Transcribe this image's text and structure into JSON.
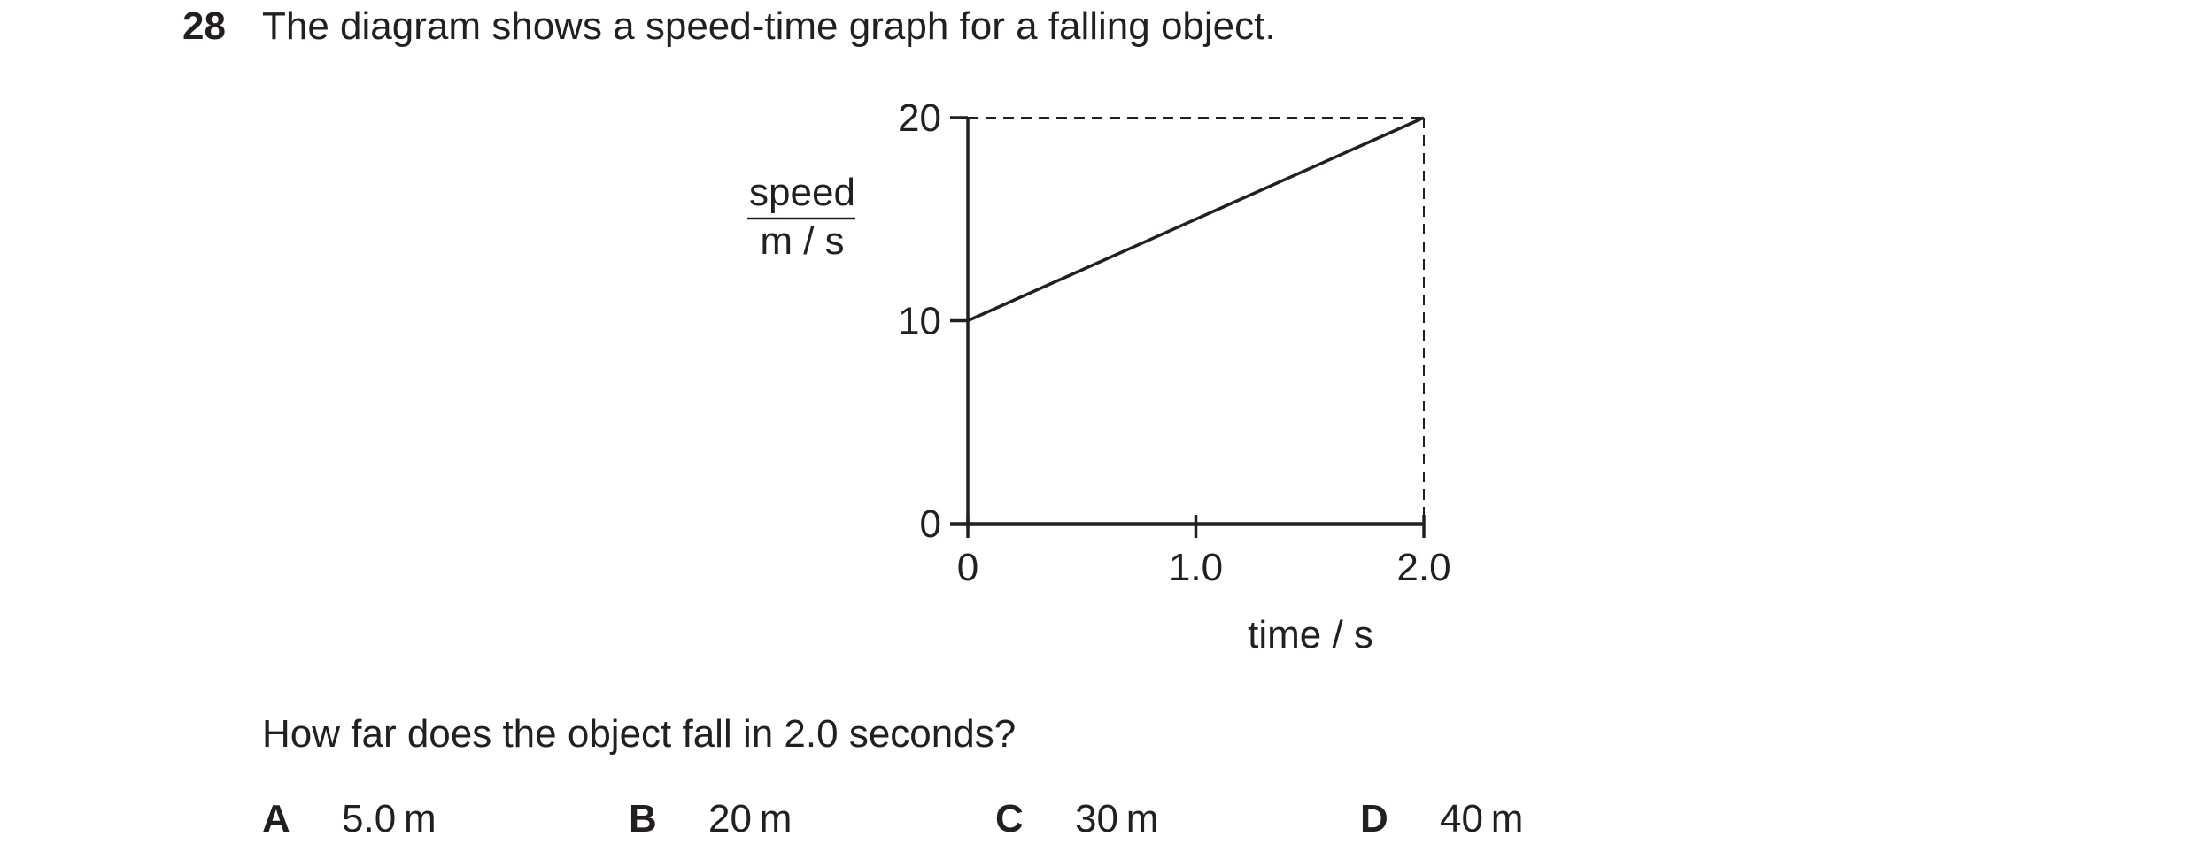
{
  "question": {
    "number": "28",
    "text": "The diagram shows a speed-time graph for a falling object.",
    "subquestion": "How far does the object fall in 2.0 seconds?"
  },
  "options": [
    {
      "letter": "A",
      "text": "5.0 m"
    },
    {
      "letter": "B",
      "text": "20 m"
    },
    {
      "letter": "C",
      "text": "30 m"
    },
    {
      "letter": "D",
      "text": "40 m"
    }
  ],
  "chart_data": {
    "type": "line",
    "title": "",
    "xlabel": "time / s",
    "ylabel_top": "speed",
    "ylabel_bottom": "m / s",
    "xlim": [
      0,
      2.0
    ],
    "ylim": [
      0,
      20
    ],
    "x_ticks": [
      0,
      1.0,
      2.0
    ],
    "x_tick_labels": [
      "0",
      "1.0",
      "2.0"
    ],
    "y_ticks": [
      0,
      10,
      20
    ],
    "y_tick_labels": [
      "0",
      "10",
      "20"
    ],
    "grid": false,
    "series": [
      {
        "x": [
          0,
          2.0
        ],
        "y": [
          10,
          20
        ]
      }
    ],
    "dashed_guides": [
      {
        "from": [
          0,
          20
        ],
        "to": [
          2.0,
          20
        ]
      },
      {
        "from": [
          2.0,
          20
        ],
        "to": [
          2.0,
          0
        ]
      }
    ],
    "line_color": "#231f20"
  }
}
